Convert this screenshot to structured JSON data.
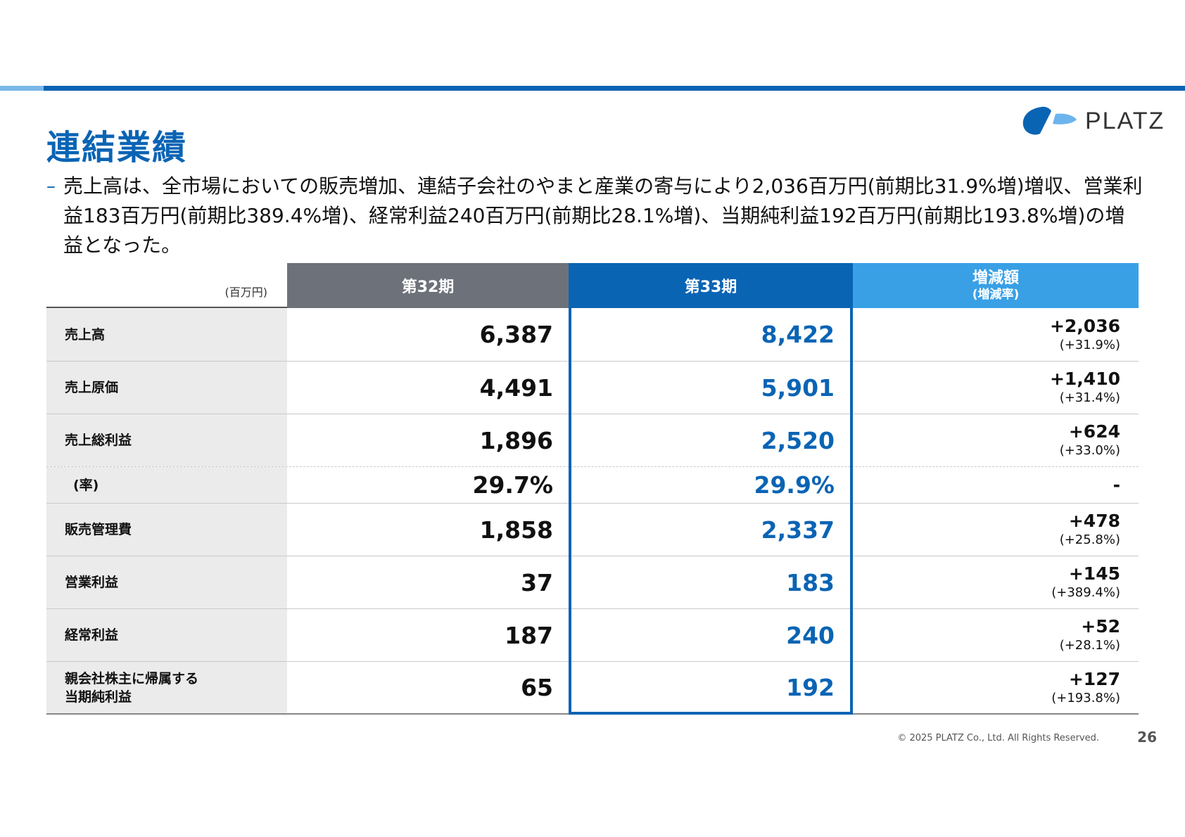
{
  "title": "連結業績",
  "logo": {
    "text": "PLATZ",
    "brand_color": "#0a64b4",
    "accent_color": "#6cb4ec"
  },
  "summary": "売上高は、全市場においての販売増加、連結子会社のやまと産業の寄与により2,036百万円(前期比31.9%増)増収、営業利益183百万円(前期比389.4%増)、経常利益240百万円(前期比28.1%増)、当期純利益192百万円(前期比193.8%増)の増益となった。",
  "table": {
    "unit": "(百万円)",
    "header": {
      "p32": "第32期",
      "p33": "第33期",
      "diff_l1": "増減額",
      "diff_l2": "(増減率)"
    },
    "rows": [
      {
        "label": "売上高",
        "p32": "6,387",
        "p33": "8,422",
        "diff": "+2,036",
        "rate": "(+31.9%)"
      },
      {
        "label": "売上原価",
        "p32": "4,491",
        "p33": "5,901",
        "diff": "+1,410",
        "rate": "(+31.4%)"
      },
      {
        "label": "売上総利益",
        "p32": "1,896",
        "p33": "2,520",
        "diff": "+624",
        "rate": "(+33.0%)"
      },
      {
        "label": "(率)",
        "p32": "29.7%",
        "p33": "29.9%",
        "diff": "-",
        "rate": ""
      },
      {
        "label": "販売管理費",
        "p32": "1,858",
        "p33": "2,337",
        "diff": "+478",
        "rate": "(+25.8%)"
      },
      {
        "label": "営業利益",
        "p32": "37",
        "p33": "183",
        "diff": "+145",
        "rate": "(+389.4%)"
      },
      {
        "label": "経常利益",
        "p32": "187",
        "p33": "240",
        "diff": "+52",
        "rate": "(+28.1%)"
      },
      {
        "label": "親会社株主に帰属する\n当期純利益",
        "p32": "65",
        "p33": "192",
        "diff": "+127",
        "rate": "(+193.8%)"
      }
    ]
  },
  "footer": {
    "copyright": "© 2025 PLATZ Co., Ltd. All Rights Reserved.",
    "page": "26"
  }
}
